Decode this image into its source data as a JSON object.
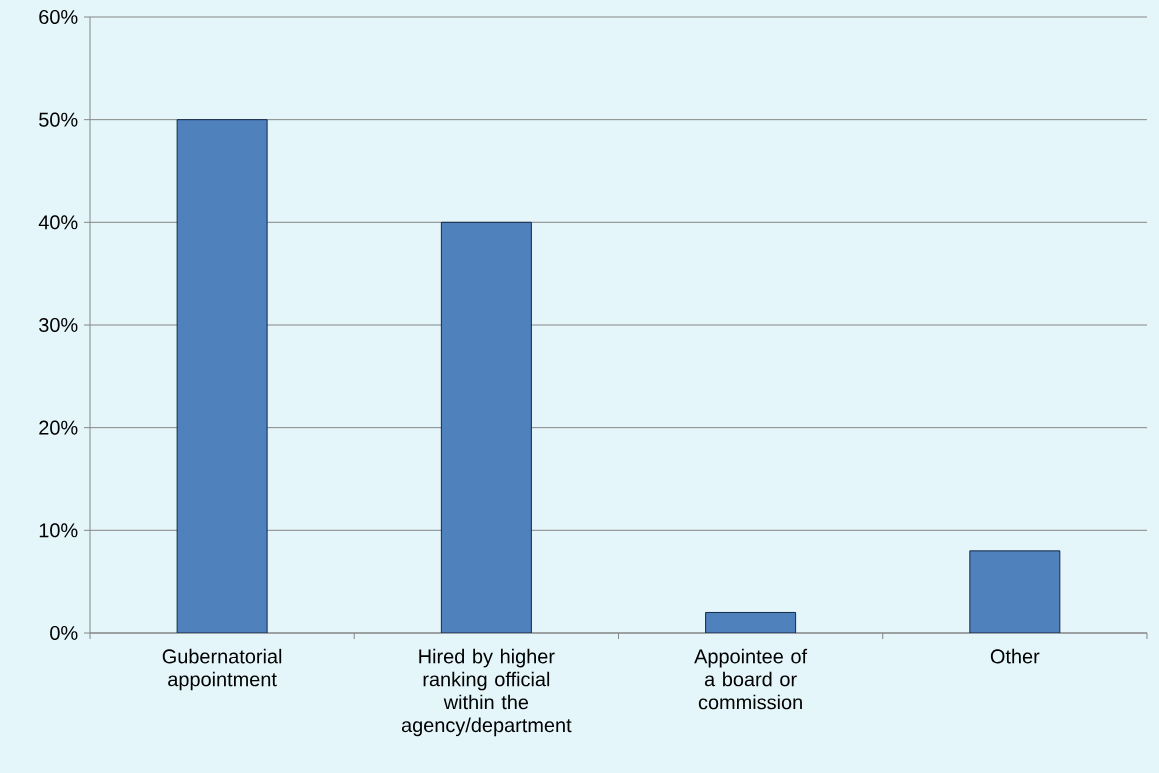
{
  "chart_data": {
    "type": "bar",
    "categories": [
      "Gubernatorial appointment",
      "Hired by higher ranking official within the agency/department",
      "Appointee of a board or commission",
      "Other"
    ],
    "values": [
      50,
      40,
      2,
      8
    ],
    "color": "#4f81bd",
    "ylim": [
      0,
      60
    ],
    "yticks": [
      {
        "value": 0,
        "label": "0%"
      },
      {
        "value": 10,
        "label": "10%"
      },
      {
        "value": 20,
        "label": "20%"
      },
      {
        "value": 30,
        "label": "30%"
      },
      {
        "value": 40,
        "label": "40%"
      },
      {
        "value": 50,
        "label": "50%"
      },
      {
        "value": 60,
        "label": "60%"
      }
    ],
    "grid": "y"
  }
}
